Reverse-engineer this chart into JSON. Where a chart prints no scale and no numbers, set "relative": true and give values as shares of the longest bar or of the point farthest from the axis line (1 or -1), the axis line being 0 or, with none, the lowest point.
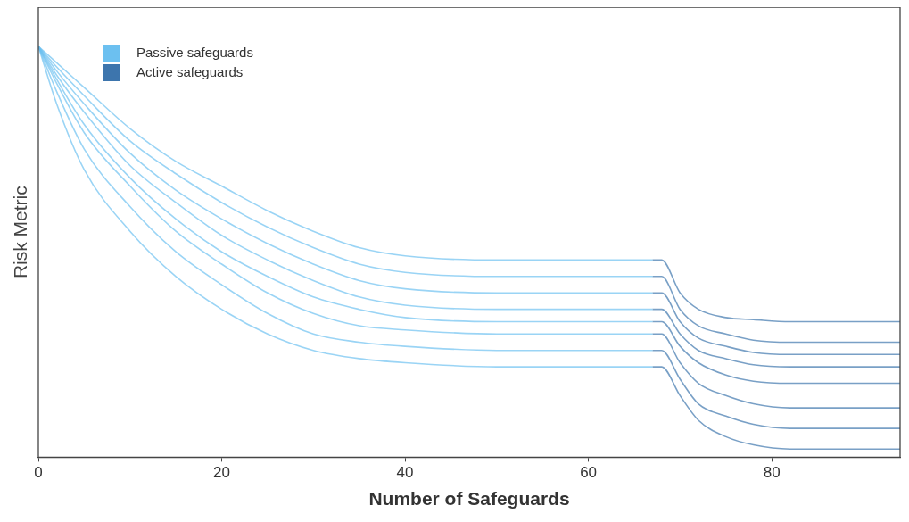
{
  "chart_data": {
    "type": "line",
    "xlabel": "Number of Safeguards",
    "ylabel": "Risk Metric",
    "relative": true,
    "xlim": [
      0,
      94
    ],
    "xticks": [
      0,
      20,
      40,
      60,
      80
    ],
    "grid": false,
    "legend": "top left",
    "marker": "none",
    "line_style": "solid",
    "series": [
      {
        "name": "Passive safeguards",
        "color": "#6cc0f0",
        "x": [
          0,
          2,
          5,
          10,
          15,
          20,
          25,
          30,
          35,
          40,
          50,
          67
        ],
        "values": [
          1,
          0.96,
          0.9,
          0.8,
          0.72,
          0.66,
          0.6,
          0.55,
          0.51,
          0.49,
          0.48,
          0.48
        ]
      },
      {
        "color": "#6cc0f0",
        "x": [
          0,
          2,
          5,
          10,
          15,
          20,
          25,
          30,
          35,
          40,
          50,
          67
        ],
        "values": [
          1,
          0.95,
          0.88,
          0.77,
          0.69,
          0.62,
          0.56,
          0.51,
          0.47,
          0.45,
          0.44,
          0.44
        ]
      },
      {
        "color": "#6cc0f0",
        "x": [
          0,
          2,
          5,
          10,
          15,
          20,
          25,
          30,
          35,
          40,
          50,
          67
        ],
        "values": [
          1,
          0.94,
          0.86,
          0.74,
          0.65,
          0.58,
          0.52,
          0.47,
          0.43,
          0.41,
          0.4,
          0.4
        ]
      },
      {
        "color": "#6cc0f0",
        "x": [
          0,
          2,
          5,
          10,
          15,
          20,
          25,
          30,
          35,
          40,
          50,
          67
        ],
        "values": [
          1,
          0.93,
          0.84,
          0.71,
          0.62,
          0.54,
          0.48,
          0.43,
          0.39,
          0.37,
          0.36,
          0.36
        ]
      },
      {
        "color": "#6cc0f0",
        "x": [
          0,
          2,
          5,
          10,
          15,
          20,
          25,
          30,
          35,
          40,
          50,
          67
        ],
        "values": [
          1,
          0.92,
          0.81,
          0.68,
          0.58,
          0.5,
          0.44,
          0.39,
          0.36,
          0.34,
          0.33,
          0.33
        ]
      },
      {
        "color": "#6cc0f0",
        "x": [
          0,
          2,
          5,
          10,
          15,
          20,
          25,
          30,
          35,
          40,
          50,
          67
        ],
        "values": [
          1,
          0.91,
          0.79,
          0.66,
          0.55,
          0.47,
          0.4,
          0.35,
          0.32,
          0.31,
          0.3,
          0.3
        ]
      },
      {
        "color": "#6cc0f0",
        "x": [
          0,
          2,
          5,
          10,
          15,
          20,
          25,
          30,
          35,
          40,
          50,
          67
        ],
        "values": [
          1,
          0.89,
          0.75,
          0.61,
          0.5,
          0.42,
          0.35,
          0.3,
          0.28,
          0.27,
          0.26,
          0.26
        ]
      },
      {
        "color": "#6cc0f0",
        "x": [
          0,
          2,
          5,
          10,
          15,
          20,
          25,
          30,
          35,
          40,
          50,
          67
        ],
        "values": [
          1,
          0.86,
          0.7,
          0.55,
          0.44,
          0.36,
          0.3,
          0.26,
          0.24,
          0.23,
          0.22,
          0.22
        ]
      },
      {
        "name": "Active safeguards",
        "color": "#3d75ad",
        "x": [
          67,
          68,
          70,
          72,
          75,
          78,
          82,
          94
        ],
        "values": [
          0.48,
          0.48,
          0.4,
          0.36,
          0.34,
          0.335,
          0.33,
          0.33
        ]
      },
      {
        "color": "#3d75ad",
        "x": [
          67,
          68,
          70,
          72,
          75,
          78,
          82,
          94
        ],
        "values": [
          0.44,
          0.44,
          0.36,
          0.32,
          0.3,
          0.285,
          0.28,
          0.28
        ]
      },
      {
        "color": "#3d75ad",
        "x": [
          67,
          68,
          70,
          72,
          75,
          78,
          82,
          94
        ],
        "values": [
          0.4,
          0.4,
          0.33,
          0.29,
          0.27,
          0.255,
          0.25,
          0.25
        ]
      },
      {
        "color": "#3d75ad",
        "x": [
          67,
          68,
          70,
          72,
          75,
          78,
          82,
          94
        ],
        "values": [
          0.36,
          0.36,
          0.3,
          0.26,
          0.24,
          0.225,
          0.22,
          0.22
        ]
      },
      {
        "color": "#3d75ad",
        "x": [
          67,
          68,
          70,
          72,
          75,
          78,
          82,
          94
        ],
        "values": [
          0.33,
          0.33,
          0.27,
          0.23,
          0.2,
          0.185,
          0.18,
          0.18
        ]
      },
      {
        "color": "#3d75ad",
        "x": [
          67,
          68,
          70,
          72,
          75,
          78,
          82,
          94
        ],
        "values": [
          0.3,
          0.3,
          0.23,
          0.18,
          0.15,
          0.13,
          0.12,
          0.12
        ]
      },
      {
        "color": "#3d75ad",
        "x": [
          67,
          68,
          70,
          72,
          75,
          78,
          82,
          94
        ],
        "values": [
          0.26,
          0.26,
          0.19,
          0.13,
          0.1,
          0.08,
          0.07,
          0.07
        ]
      },
      {
        "color": "#3d75ad",
        "x": [
          67,
          68,
          70,
          72,
          75,
          78,
          82,
          94
        ],
        "values": [
          0.22,
          0.22,
          0.15,
          0.09,
          0.05,
          0.03,
          0.02,
          0.02
        ]
      }
    ]
  }
}
